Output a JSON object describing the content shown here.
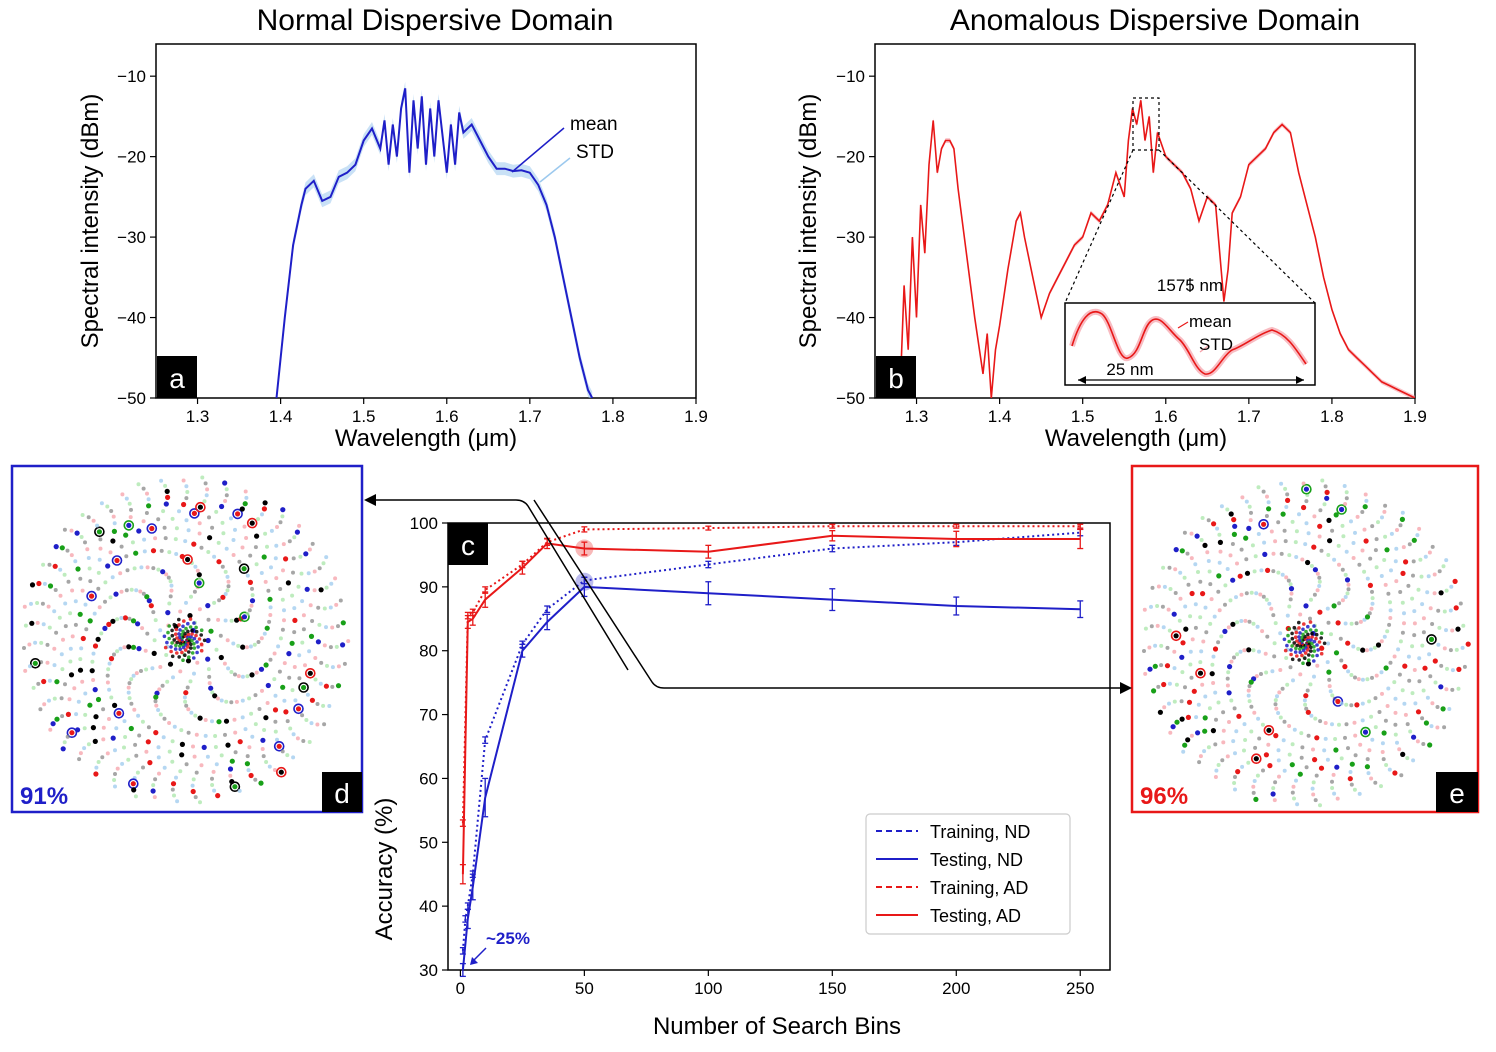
{
  "colors": {
    "nd": "#1f1fc8",
    "ad": "#e81818",
    "nd_std": "#9cc9ee",
    "ad_std": "#f5a0a8",
    "grey": "#888888",
    "green": "#18a018",
    "black": "#000000"
  },
  "panels": {
    "a": {
      "label": "a",
      "title": "Normal Dispersive Domain",
      "legend_mean": "mean",
      "legend_std": "STD"
    },
    "b": {
      "label": "b",
      "title": "Anomalous Dispersive Domain",
      "inset_center": "1575 nm",
      "inset_span": "25 nm",
      "legend_mean": "mean",
      "legend_std": "STD"
    },
    "c": {
      "label": "c",
      "annotation": "~25%"
    },
    "d": {
      "label": "d",
      "accuracy": "91%"
    },
    "e": {
      "label": "e",
      "accuracy": "96%"
    }
  },
  "chart_data": [
    {
      "id": "a",
      "type": "line",
      "title": "Normal Dispersive Domain",
      "xlabel": "Wavelength (μm)",
      "ylabel": "Spectral intensity (dBm)",
      "xlim": [
        1.25,
        1.9
      ],
      "ylim": [
        -50,
        -6
      ],
      "xticks": [
        1.3,
        1.4,
        1.5,
        1.6,
        1.7,
        1.8,
        1.9
      ],
      "xtick_labels": [
        "1.3",
        "1.4",
        "1.5",
        "1.6",
        "1.7",
        "1.8",
        "1.9"
      ],
      "yticks": [
        -50,
        -40,
        -30,
        -20,
        -10
      ],
      "ytick_labels": [
        "−50",
        "−40",
        "−30",
        "−20",
        "−10"
      ],
      "series": [
        {
          "name": "mean",
          "x": [
            1.395,
            1.405,
            1.415,
            1.425,
            1.43,
            1.44,
            1.45,
            1.46,
            1.47,
            1.48,
            1.49,
            1.5,
            1.51,
            1.52,
            1.525,
            1.53,
            1.535,
            1.54,
            1.545,
            1.55,
            1.555,
            1.56,
            1.565,
            1.57,
            1.575,
            1.58,
            1.585,
            1.59,
            1.6,
            1.605,
            1.61,
            1.615,
            1.62,
            1.63,
            1.64,
            1.65,
            1.66,
            1.67,
            1.68,
            1.69,
            1.7,
            1.71,
            1.72,
            1.73,
            1.74,
            1.75,
            1.76,
            1.77,
            1.775
          ],
          "y": [
            -50,
            -40,
            -31,
            -26,
            -24,
            -23,
            -25.5,
            -25,
            -22.5,
            -22,
            -21,
            -18,
            -16.5,
            -19,
            -15.5,
            -21,
            -16,
            -20,
            -14,
            -11.5,
            -22,
            -13,
            -19,
            -12.5,
            -21,
            -14,
            -20,
            -13,
            -22,
            -16,
            -21,
            -14.5,
            -17,
            -16,
            -18,
            -20,
            -21.5,
            -21.5,
            -21.8,
            -21.7,
            -22,
            -23.5,
            -26,
            -30,
            -35,
            -40,
            -45,
            -49,
            -50
          ]
        },
        {
          "name": "STD",
          "half_width": 0.8
        }
      ]
    },
    {
      "id": "b",
      "type": "line",
      "title": "Anomalous Dispersive Domain",
      "xlabel": "Wavelength (μm)",
      "ylabel": "Spectral intensity (dBm)",
      "xlim": [
        1.25,
        1.9
      ],
      "ylim": [
        -50,
        -6
      ],
      "xticks": [
        1.3,
        1.4,
        1.5,
        1.6,
        1.7,
        1.8,
        1.9
      ],
      "xtick_labels": [
        "1.3",
        "1.4",
        "1.5",
        "1.6",
        "1.7",
        "1.8",
        "1.9"
      ],
      "yticks": [
        -50,
        -40,
        -30,
        -20,
        -10
      ],
      "ytick_labels": [
        "−50",
        "−40",
        "−30",
        "−20",
        "−10"
      ],
      "series": [
        {
          "name": "mean",
          "x": [
            1.28,
            1.285,
            1.29,
            1.295,
            1.3,
            1.305,
            1.31,
            1.315,
            1.32,
            1.325,
            1.33,
            1.335,
            1.34,
            1.345,
            1.35,
            1.36,
            1.37,
            1.38,
            1.385,
            1.39,
            1.395,
            1.4,
            1.41,
            1.42,
            1.425,
            1.43,
            1.44,
            1.45,
            1.46,
            1.47,
            1.48,
            1.49,
            1.5,
            1.51,
            1.52,
            1.53,
            1.54,
            1.55,
            1.555,
            1.56,
            1.565,
            1.57,
            1.575,
            1.58,
            1.585,
            1.59,
            1.6,
            1.61,
            1.62,
            1.63,
            1.64,
            1.65,
            1.66,
            1.67,
            1.675,
            1.68,
            1.69,
            1.7,
            1.71,
            1.72,
            1.73,
            1.74,
            1.75,
            1.76,
            1.77,
            1.78,
            1.79,
            1.8,
            1.81,
            1.82,
            1.83,
            1.84,
            1.85,
            1.86,
            1.87,
            1.88,
            1.89,
            1.9
          ],
          "y": [
            -50,
            -36,
            -44,
            -30,
            -40,
            -26,
            -32,
            -21,
            -15.5,
            -22,
            -19,
            -18,
            -18,
            -19,
            -24,
            -32,
            -40,
            -47,
            -42,
            -50,
            -44,
            -41,
            -34,
            -28,
            -27,
            -30,
            -35,
            -40,
            -37,
            -35,
            -33,
            -31,
            -30,
            -27,
            -28,
            -26,
            -22,
            -25,
            -18,
            -14,
            -16,
            -13,
            -18,
            -15,
            -22,
            -17,
            -20,
            -21,
            -22,
            -24,
            -28,
            -25,
            -26,
            -38,
            -34,
            -27,
            -25,
            -21,
            -20,
            -19,
            -17,
            -16,
            -17,
            -22,
            -26,
            -30,
            -35,
            -39,
            -42,
            -44,
            -45,
            -46,
            -47,
            -48,
            -48.5,
            -49,
            -49.5,
            -50
          ]
        },
        {
          "name": "STD",
          "half_width": 0.3
        }
      ]
    },
    {
      "id": "c",
      "type": "line",
      "xlabel": "Number of Search Bins",
      "ylabel": "Accuracy (%)",
      "xlim": [
        -5,
        262
      ],
      "ylim": [
        30,
        100
      ],
      "xticks": [
        0,
        50,
        100,
        150,
        200,
        250
      ],
      "xtick_labels": [
        "0",
        "50",
        "100",
        "150",
        "200",
        "250"
      ],
      "yticks": [
        30,
        40,
        50,
        60,
        70,
        80,
        90,
        100
      ],
      "ytick_labels": [
        "30",
        "40",
        "50",
        "60",
        "70",
        "80",
        "90",
        "100"
      ],
      "legend": [
        "Training, ND",
        "Testing, ND",
        "Training, AD",
        "Testing, AD"
      ],
      "series": [
        {
          "name": "Training, ND",
          "style": "dotted",
          "color": "nd",
          "x": [
            1,
            2,
            3,
            5,
            10,
            25,
            35,
            50,
            100,
            150,
            200,
            250
          ],
          "y": [
            33,
            38,
            40,
            45,
            66,
            81,
            86.5,
            91,
            93.5,
            96,
            97,
            98.5
          ],
          "err": [
            0.5,
            0.5,
            0.5,
            0.5,
            0.5,
            0.5,
            0.5,
            0.5,
            0.5,
            0.5,
            0.5,
            0.5
          ]
        },
        {
          "name": "Testing, ND",
          "style": "solid",
          "color": "nd",
          "x": [
            1,
            3,
            5,
            10,
            25,
            35,
            50,
            100,
            150,
            200,
            250
          ],
          "y": [
            30,
            38,
            43,
            57,
            80,
            84.5,
            90,
            89,
            88,
            87,
            86.5
          ],
          "err": [
            1,
            1.5,
            2,
            3,
            1,
            1.2,
            1.5,
            1.8,
            1.7,
            1.4,
            1.3
          ]
        },
        {
          "name": "Training, AD",
          "style": "dotted",
          "color": "ad",
          "x": [
            1,
            3,
            5,
            10,
            25,
            35,
            50,
            100,
            150,
            200,
            250
          ],
          "y": [
            53,
            85.5,
            86,
            89.5,
            93.5,
            97,
            99,
            99.2,
            99.5,
            99.5,
            99.5
          ],
          "err": [
            0.5,
            0.5,
            0.5,
            0.5,
            0.5,
            0.5,
            0.4,
            0.3,
            0.3,
            0.3,
            0.3
          ]
        },
        {
          "name": "Testing, AD",
          "style": "solid",
          "color": "ad",
          "x": [
            1,
            3,
            5,
            10,
            25,
            35,
            50,
            100,
            150,
            200,
            250
          ],
          "y": [
            45,
            84.5,
            85,
            88,
            93,
            96.8,
            96,
            95.5,
            98,
            97.5,
            97.5
          ],
          "err": [
            1.5,
            1,
            1,
            1.2,
            1,
            0.8,
            1,
            1,
            0.8,
            1.2,
            1.5
          ]
        }
      ],
      "highlights": [
        {
          "x": 50,
          "y": 90.8,
          "color": "nd"
        },
        {
          "x": 50,
          "y": 96,
          "color": "ad"
        }
      ],
      "annotations": [
        "~25%"
      ]
    }
  ]
}
